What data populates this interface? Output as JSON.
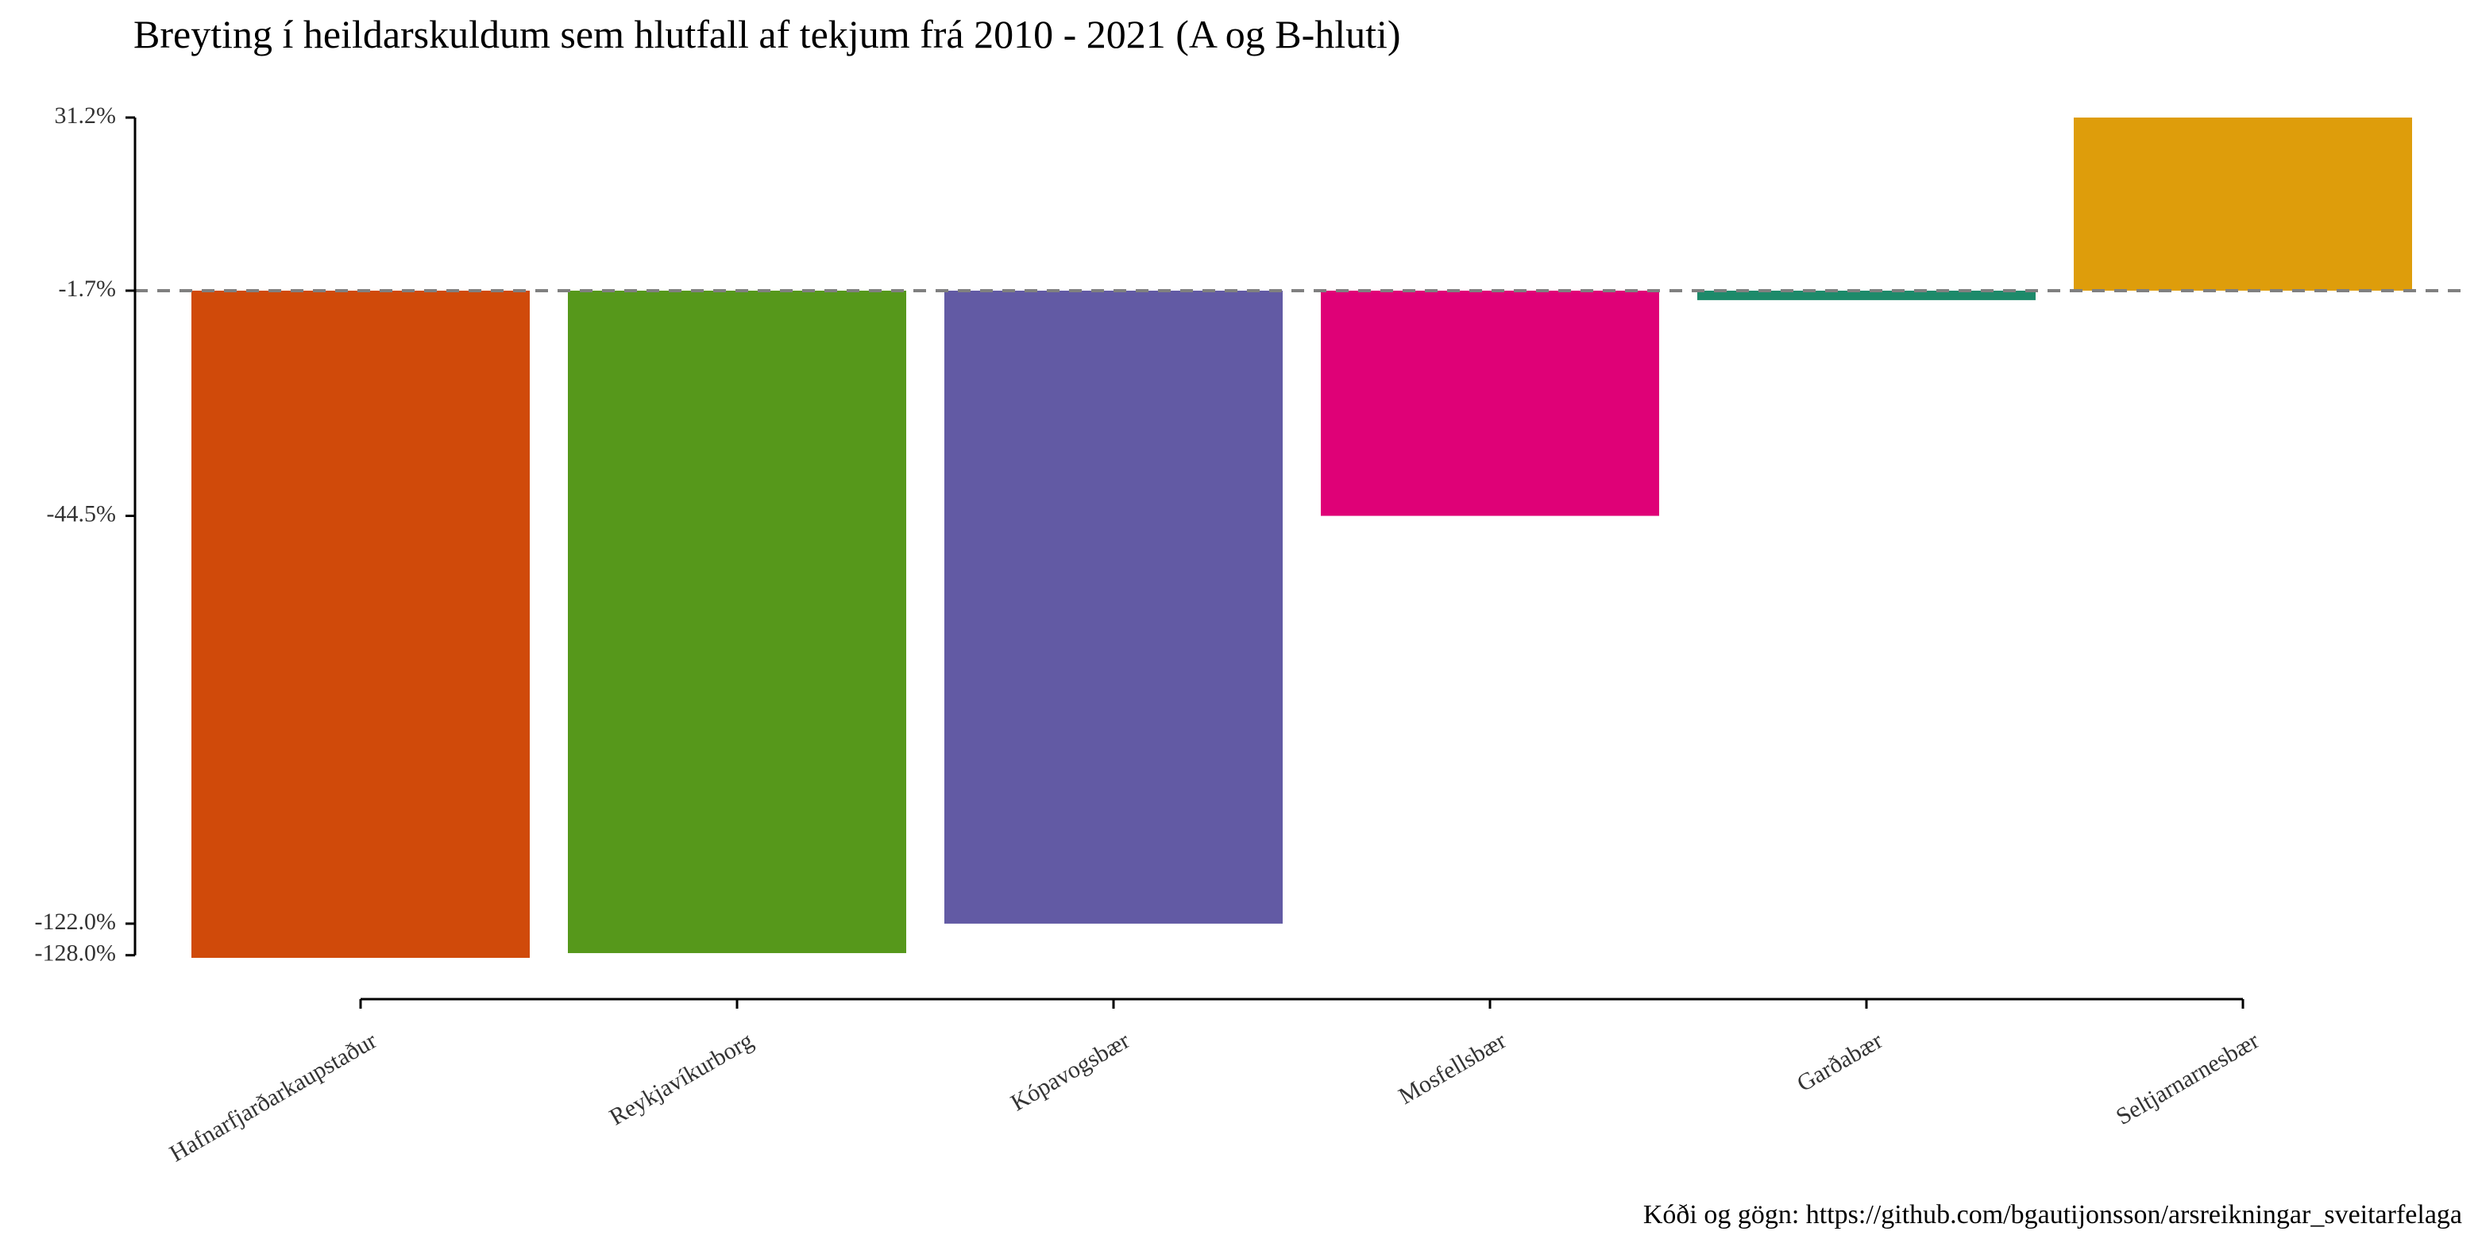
{
  "title": "Breyting í heildarskuldum sem hlutfall af tekjum frá 2010 - 2021 (A og B-hluti)",
  "caption": "Kóði og gögn: https://github.com/bgautijonsson/arsreikningar_sveitarfelaga",
  "chart_data": {
    "type": "bar",
    "title": "Breyting í heildarskuldum sem hlutfall af tekjum frá 2010 - 2021 (A og B-hluti)",
    "xlabel": "",
    "ylabel": "",
    "categories": [
      "Hafnarfjarðarkaupstaður",
      "Reykjavíkurborg",
      "Kópavogsbær",
      "Mosfellsbær",
      "Garðabær",
      "Seltjarnarnesbær"
    ],
    "values": [
      -128.5,
      -127.6,
      -122.0,
      -44.5,
      -3.5,
      31.2
    ],
    "colors": [
      "#D04A0A",
      "#56981B",
      "#625AA4",
      "#DF0177",
      "#1D8A6A",
      "#DE9D0B"
    ],
    "baseline": -1.7,
    "reference_line": {
      "value": -1.7,
      "style": "dashed",
      "color": "#808080"
    },
    "ylim": [
      -128.5,
      31.2
    ],
    "y_ticks": [
      31.2,
      -1.7,
      -44.5,
      -122.0,
      -128.0
    ],
    "y_tick_labels": [
      "31.2%",
      "-1.7%",
      "-44.5%",
      "-122.0%",
      "-128.0%"
    ],
    "x_tick_label_rotation": -30,
    "grid": false,
    "legend": "none"
  }
}
